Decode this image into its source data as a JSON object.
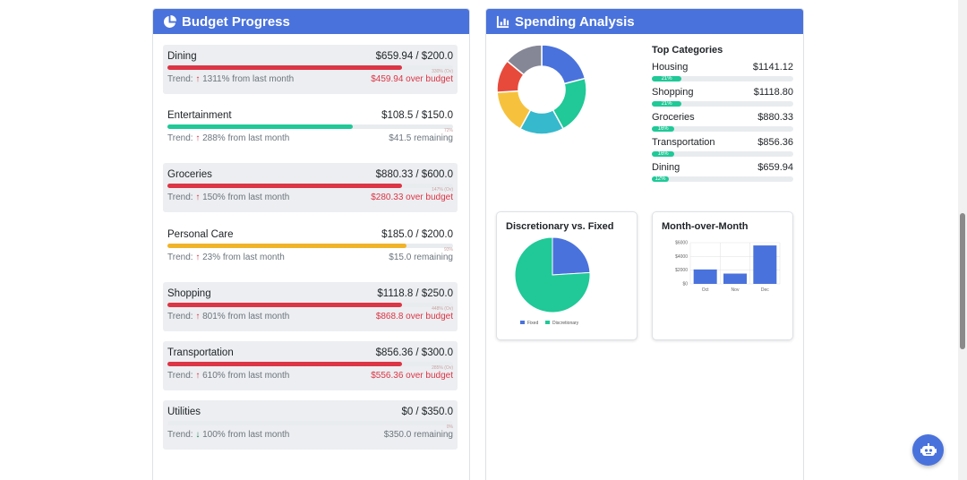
{
  "budget": {
    "title": "Budget Progress",
    "items": [
      {
        "name": "Dining",
        "amount": "$659.94 / $200.0",
        "pct_text": "330% (Ov)",
        "trend_prefix": "Trend: ",
        "trend_arrow": "↑",
        "trend_text": " 1311% from last month",
        "status": "$459.94 over budget",
        "over": true,
        "fill": 1.0,
        "color": "#dc3545"
      },
      {
        "name": "Entertainment",
        "amount": "$108.5 / $150.0",
        "pct_text": "72%",
        "trend_prefix": "Trend: ",
        "trend_arrow": "↑",
        "trend_text": " 288% from last month",
        "status": "$41.5 remaining",
        "over": false,
        "fill": 0.72,
        "color": "#20c997"
      },
      {
        "name": "Groceries",
        "amount": "$880.33 / $600.0",
        "pct_text": "147% (Ov)",
        "trend_prefix": "Trend: ",
        "trend_arrow": "↑",
        "trend_text": " 150% from last month",
        "status": "$280.33 over budget",
        "over": true,
        "fill": 1.0,
        "color": "#dc3545"
      },
      {
        "name": "Personal Care",
        "amount": "$185.0 / $200.0",
        "pct_text": "93%",
        "trend_prefix": "Trend: ",
        "trend_arrow": "↑",
        "trend_text": " 23% from last month",
        "status": "$15.0 remaining",
        "over": false,
        "fill": 0.93,
        "color": "#f0b429"
      },
      {
        "name": "Shopping",
        "amount": "$1118.8 / $250.0",
        "pct_text": "448% (Ov)",
        "trend_prefix": "Trend: ",
        "trend_arrow": "↑",
        "trend_text": " 801% from last month",
        "status": "$868.8 over budget",
        "over": true,
        "fill": 1.0,
        "color": "#dc3545"
      },
      {
        "name": "Transportation",
        "amount": "$856.36 / $300.0",
        "pct_text": "285% (Ov)",
        "trend_prefix": "Trend: ",
        "trend_arrow": "↑",
        "trend_text": " 610% from last month",
        "status": "$556.36 over budget",
        "over": true,
        "fill": 1.0,
        "color": "#dc3545"
      },
      {
        "name": "Utilities",
        "amount": "$0 / $350.0",
        "pct_text": "0%",
        "trend_prefix": "Trend: ",
        "trend_arrow": "↓",
        "trend_text": " 100% from last month",
        "status": "$350.0 remaining",
        "over": false,
        "fill": 0.0,
        "color": "#20c997"
      }
    ]
  },
  "analysis": {
    "title": "Spending Analysis",
    "top_categories_title": "Top Categories",
    "top_categories": [
      {
        "name": "Housing",
        "amount": "$1141.12",
        "pct": "21%",
        "fill": 0.21
      },
      {
        "name": "Shopping",
        "amount": "$1118.80",
        "pct": "21%",
        "fill": 0.21
      },
      {
        "name": "Groceries",
        "amount": "$880.33",
        "pct": "16%",
        "fill": 0.16
      },
      {
        "name": "Transportation",
        "amount": "$856.36",
        "pct": "16%",
        "fill": 0.16
      },
      {
        "name": "Dining",
        "amount": "$659.94",
        "pct": "12%",
        "fill": 0.12
      }
    ],
    "discretionary_title": "Discretionary vs. Fixed",
    "month_title": "Month-over-Month"
  },
  "chart_data": [
    {
      "type": "pie",
      "donut": true,
      "values": [
        21,
        21,
        16,
        16,
        12,
        14
      ],
      "colors": [
        "#4a72dc",
        "#20c997",
        "#36b9cc",
        "#f6c23e",
        "#e74a3b",
        "#858796"
      ]
    },
    {
      "type": "pie",
      "title": "Discretionary vs. Fixed",
      "categories": [
        "Fixed",
        "Discretionary"
      ],
      "values": [
        24,
        76
      ],
      "colors": [
        "#4a72dc",
        "#20c997"
      ],
      "legend": "bottom"
    },
    {
      "type": "bar",
      "title": "Month-over-Month",
      "categories": [
        "Oct",
        "Nov",
        "Dec"
      ],
      "values": [
        2100,
        1500,
        5600
      ],
      "yticks": [
        "$6000",
        "$4000",
        "$2000",
        "$0"
      ],
      "ylim": [
        0,
        6000
      ],
      "color": "#4a72dc",
      "grid": true
    }
  ],
  "colors": {
    "header": "#4a72dc",
    "over": "#dc3545",
    "good": "#20c997",
    "warn": "#f0b429"
  },
  "icons": {
    "budget": "pie-chart-icon",
    "analysis": "bar-chart-icon",
    "assistant": "robot-icon"
  }
}
